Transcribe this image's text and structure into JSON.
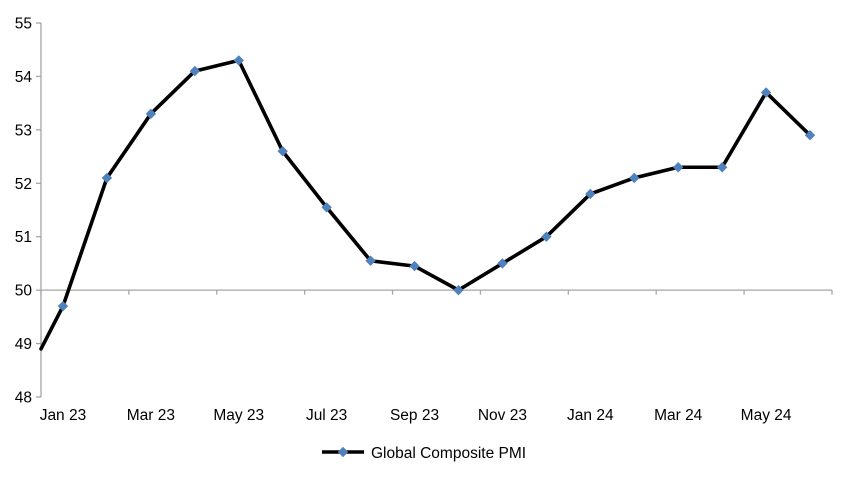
{
  "chart_data": {
    "type": "line",
    "title": "",
    "xlabel": "",
    "ylabel": "",
    "legend": "Global Composite PMI",
    "legend_position": "bottom-center",
    "categories": [
      "Jan 23",
      "Feb 23",
      "Mar 23",
      "Apr 23",
      "May 23",
      "Jun 23",
      "Jul 23",
      "Aug 23",
      "Sep 23",
      "Oct 23",
      "Nov 23",
      "Dec 23",
      "Jan 24",
      "Feb 24",
      "Mar 24",
      "Apr 24",
      "May 24",
      "Jun 24"
    ],
    "series": [
      {
        "name": "Global Composite PMI",
        "values": [
          49.7,
          52.1,
          53.3,
          54.1,
          54.3,
          52.6,
          51.55,
          50.55,
          50.45,
          50.0,
          50.5,
          51.0,
          51.8,
          52.1,
          52.3,
          52.3,
          53.7,
          52.9
        ],
        "marker": "diamond",
        "marker_color": "#4F81BD",
        "line_color": "#000000"
      }
    ],
    "lead_in_value_at_left_axis_edge": 48.9,
    "x_label_interval": 2,
    "x_tick_labels_shown": [
      "Jan 23",
      "Mar 23",
      "May 23",
      "Jul 23",
      "Sep 23",
      "Nov 23",
      "Jan 24",
      "Mar 24",
      "May 24"
    ],
    "ylim": [
      48,
      55
    ],
    "y_tick_labels": [
      "48",
      "49",
      "50",
      "51",
      "52",
      "53",
      "54",
      "55"
    ],
    "x_axis_crosses_at_y": 50,
    "grid": false,
    "axis_color": "#A6A6A6",
    "text_color": "#000000",
    "background_color": "#FFFFFF"
  }
}
